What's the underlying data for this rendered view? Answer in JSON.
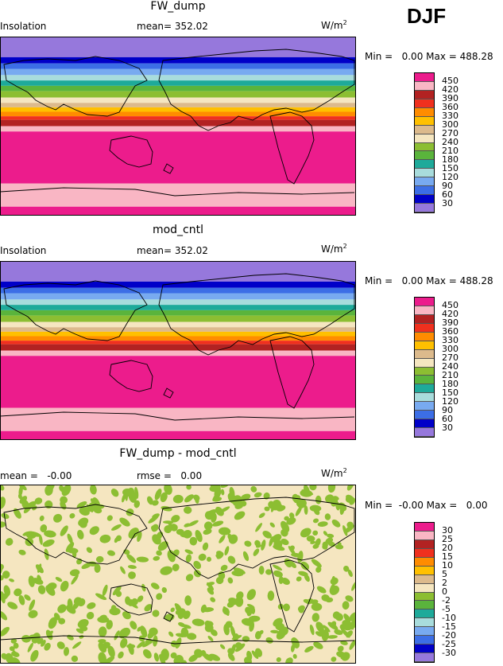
{
  "season": "DJF",
  "units_base": "W/m",
  "units_exp": "2",
  "panels": [
    {
      "title": "FW_dump",
      "left_label": "Insolation",
      "stat_text": "mean= 352.02",
      "minmax_text": "Min =   0.00 Max = 488.28",
      "type": "zonal"
    },
    {
      "title": "mod_cntl",
      "left_label": "Insolation",
      "stat_text": "mean= 352.02",
      "minmax_text": "Min =   0.00 Max = 488.28",
      "type": "zonal"
    },
    {
      "title": "FW_dump - mod_cntl",
      "left_label": "mean =   -0.00",
      "stat_text": "rmse =   0.00",
      "minmax_text": "Min =  -0.00 Max =   0.00",
      "type": "diff"
    }
  ],
  "colorbar_abs": {
    "labels": [
      "450",
      "420",
      "390",
      "360",
      "330",
      "300",
      "270",
      "240",
      "210",
      "180",
      "150",
      "120",
      "90",
      "60",
      "30"
    ],
    "colors": [
      "#ec1c8c",
      "#f9b6c4",
      "#b22222",
      "#f0301e",
      "#ff8c00",
      "#ffc000",
      "#dcba8c",
      "#f5e6c0",
      "#8cbe32",
      "#5ab43c",
      "#1eaa9a",
      "#a8dcdc",
      "#78aaf0",
      "#3c6ee6",
      "#0000c8",
      "#9678dc"
    ]
  },
  "colorbar_diff": {
    "labels": [
      "30",
      "25",
      "20",
      "15",
      "10",
      "5",
      "2",
      "0",
      "-2",
      "-5",
      "-10",
      "-15",
      "-20",
      "-25",
      "-30"
    ],
    "colors": [
      "#ec1c8c",
      "#f9b6c4",
      "#b22222",
      "#f0301e",
      "#ff8c00",
      "#ffc000",
      "#dcba8c",
      "#f5e6c0",
      "#8cbe32",
      "#5ab43c",
      "#1eaa9a",
      "#a8dcdc",
      "#78aaf0",
      "#3c6ee6",
      "#0000c8",
      "#9678dc"
    ]
  },
  "zonal_bands": [
    {
      "frac": 0.0,
      "color": "#9678dc"
    },
    {
      "frac": 0.115,
      "color": "#0000c8"
    },
    {
      "frac": 0.15,
      "color": "#3c6ee6"
    },
    {
      "frac": 0.18,
      "color": "#78aaf0"
    },
    {
      "frac": 0.215,
      "color": "#a8dcdc"
    },
    {
      "frac": 0.245,
      "color": "#1eaa9a"
    },
    {
      "frac": 0.275,
      "color": "#5ab43c"
    },
    {
      "frac": 0.305,
      "color": "#8cbe32"
    },
    {
      "frac": 0.34,
      "color": "#f5e6c0"
    },
    {
      "frac": 0.37,
      "color": "#dcba8c"
    },
    {
      "frac": 0.395,
      "color": "#ffc000"
    },
    {
      "frac": 0.42,
      "color": "#ff8c00"
    },
    {
      "frac": 0.445,
      "color": "#f0301e"
    },
    {
      "frac": 0.465,
      "color": "#b22222"
    },
    {
      "frac": 0.5,
      "color": "#f9b6c4"
    },
    {
      "frac": 0.53,
      "color": "#ec1c8c"
    },
    {
      "frac": 0.82,
      "color": "#f9b6c4"
    },
    {
      "frac": 0.95,
      "color": "#ec1c8c"
    }
  ],
  "chart_data": [
    {
      "type": "heatmap",
      "title": "FW_dump",
      "variable": "Insolation",
      "season": "DJF",
      "mean": 352.02,
      "min": 0.0,
      "max": 488.28,
      "units": "W/m2",
      "levels": [
        30,
        60,
        90,
        120,
        150,
        180,
        210,
        240,
        270,
        300,
        330,
        360,
        390,
        420,
        450
      ]
    },
    {
      "type": "heatmap",
      "title": "mod_cntl",
      "variable": "Insolation",
      "season": "DJF",
      "mean": 352.02,
      "min": 0.0,
      "max": 488.28,
      "units": "W/m2",
      "levels": [
        30,
        60,
        90,
        120,
        150,
        180,
        210,
        240,
        270,
        300,
        330,
        360,
        390,
        420,
        450
      ]
    },
    {
      "type": "heatmap",
      "title": "FW_dump - mod_cntl",
      "mean": -0.0,
      "rmse": 0.0,
      "min": -0.0,
      "max": 0.0,
      "units": "W/m2",
      "levels": [
        -30,
        -25,
        -20,
        -15,
        -10,
        -5,
        -2,
        0,
        2,
        5,
        10,
        15,
        20,
        25,
        30
      ]
    }
  ]
}
